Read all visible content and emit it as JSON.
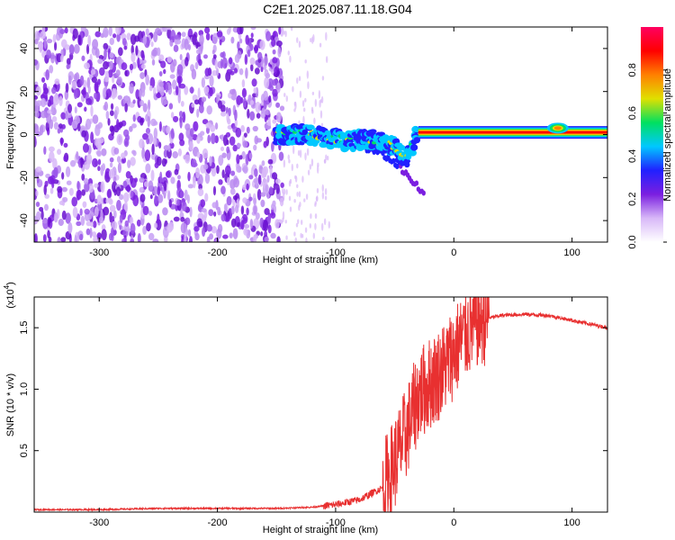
{
  "title": "C2E1.2025.087.11.18.G04",
  "colors": {
    "snr_line": "#e83030",
    "frame": "#000000"
  },
  "chart_data": [
    {
      "type": "heatmap",
      "name": "spectrogram",
      "xlabel": "Height of straight line (km)",
      "ylabel": "Frequency (Hz)",
      "xlim": [
        -355,
        130
      ],
      "ylim": [
        -50,
        50
      ],
      "x_ticks": [
        -300,
        -200,
        -100,
        0,
        100
      ],
      "y_ticks": [
        -40,
        -20,
        0,
        20,
        40
      ],
      "colorbar": {
        "label": "Normalized spectral amplitude",
        "range": [
          0.0,
          1.0
        ],
        "ticks": [
          "0.0",
          "0.2",
          "0.4",
          "0.6",
          "0.8"
        ],
        "colormap": [
          "#ffffff",
          "#d8b8f8",
          "#7b1fe0",
          "#2020ff",
          "#00c8ff",
          "#00e060",
          "#e0e000",
          "#ff8000",
          "#ff0000",
          "#ff0060"
        ]
      },
      "noise_region_x": [
        -355,
        -145
      ],
      "signal_track": [
        [
          -150,
          0
        ],
        [
          -120,
          0
        ],
        [
          -90,
          -3
        ],
        [
          -70,
          -2
        ],
        [
          -50,
          -6
        ],
        [
          -40,
          -12
        ],
        [
          -30,
          2
        ],
        [
          -20,
          0
        ],
        [
          0,
          0
        ],
        [
          40,
          1
        ],
        [
          80,
          2
        ],
        [
          100,
          1
        ],
        [
          130,
          1
        ]
      ]
    },
    {
      "type": "line",
      "name": "snr",
      "xlabel": "Height of straight line (km)",
      "ylabel": "SNR (10 * v/v)",
      "y_multiplier": "(x10",
      "y_multiplier_exp": "4",
      "xlim": [
        -355,
        130
      ],
      "ylim": [
        0,
        1.75
      ],
      "x_ticks": [
        -300,
        -200,
        -100,
        0,
        100
      ],
      "y_ticks": [
        0.5,
        1.0,
        1.5
      ],
      "y_tick_labels": [
        "0.5",
        "1.0",
        "1.5"
      ],
      "series": [
        {
          "x": [
            -355,
            -300,
            -250,
            -200,
            -150,
            -120,
            -100,
            -80,
            -60,
            -50,
            -40,
            -30,
            -20,
            -10,
            0,
            10,
            20,
            30,
            40,
            60,
            80,
            100,
            120,
            130
          ],
          "y": [
            0.02,
            0.02,
            0.03,
            0.03,
            0.03,
            0.04,
            0.06,
            0.1,
            0.2,
            0.4,
            0.65,
            0.95,
            1.05,
            1.15,
            1.3,
            1.45,
            1.55,
            1.58,
            1.6,
            1.61,
            1.6,
            1.56,
            1.52,
            1.5
          ]
        }
      ]
    }
  ]
}
